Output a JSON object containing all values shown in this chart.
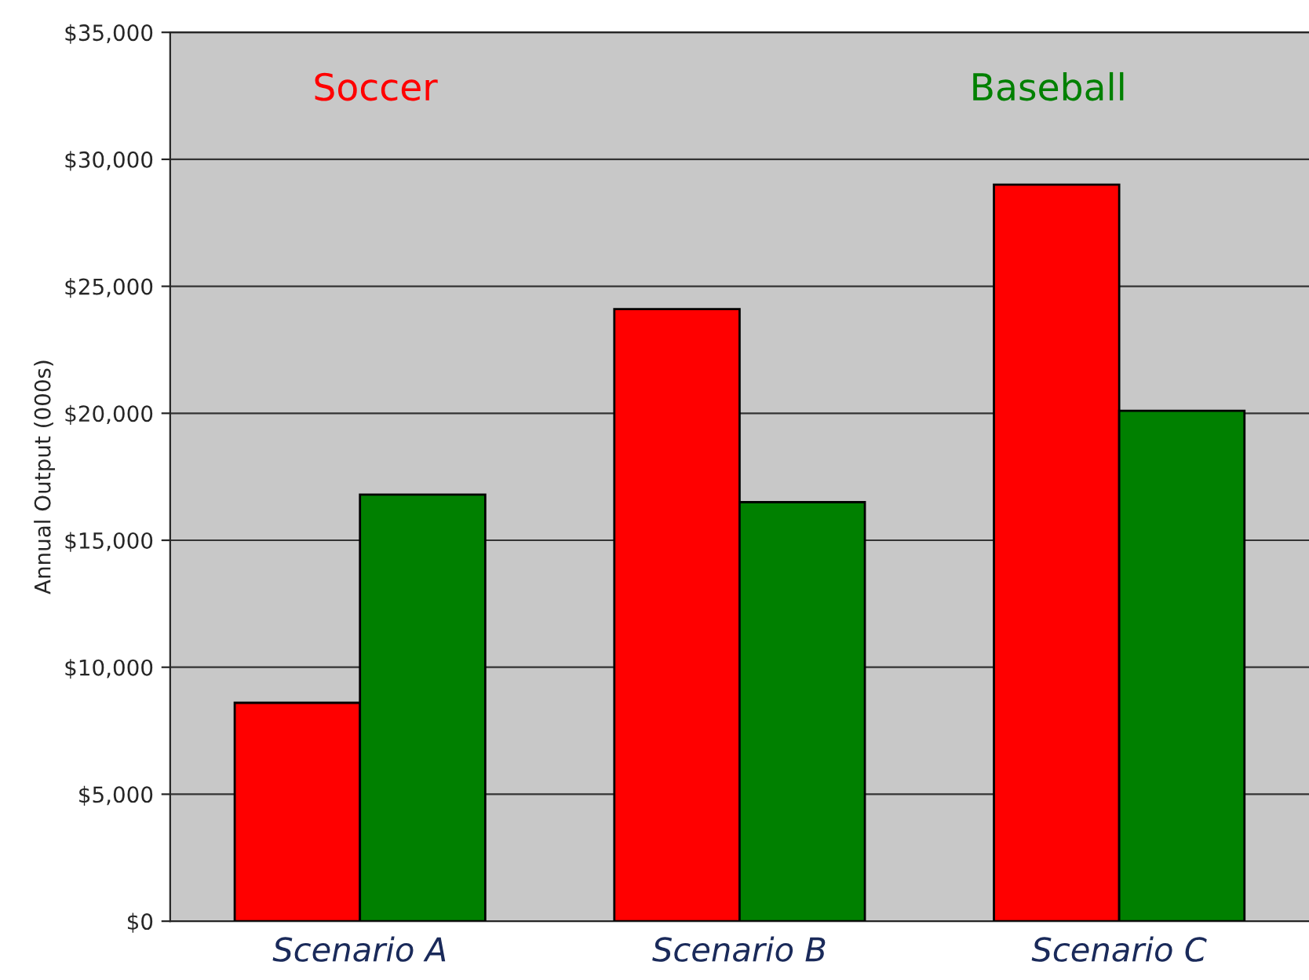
{
  "chart_data": {
    "type": "bar",
    "ylabel": "Annual Output (000s)",
    "categories": [
      "Scenario A",
      "Scenario B",
      "Scenario C"
    ],
    "series": [
      {
        "name": "Soccer",
        "color": "#ff0000",
        "values": [
          8600,
          24100,
          29000
        ]
      },
      {
        "name": "Baseball",
        "color": "#008000",
        "values": [
          16800,
          16500,
          20100
        ]
      }
    ],
    "ylim": [
      0,
      35000
    ],
    "yticks": [
      {
        "value": 0,
        "label": "$0"
      },
      {
        "value": 5000,
        "label": "$5,000"
      },
      {
        "value": 10000,
        "label": "$10,000"
      },
      {
        "value": 15000,
        "label": "$15,000"
      },
      {
        "value": 20000,
        "label": "$20,000"
      },
      {
        "value": 25000,
        "label": "$25,000"
      },
      {
        "value": 30000,
        "label": "$30,000"
      },
      {
        "value": 35000,
        "label": "$35,000"
      }
    ],
    "grid": "y",
    "legend": "top"
  }
}
